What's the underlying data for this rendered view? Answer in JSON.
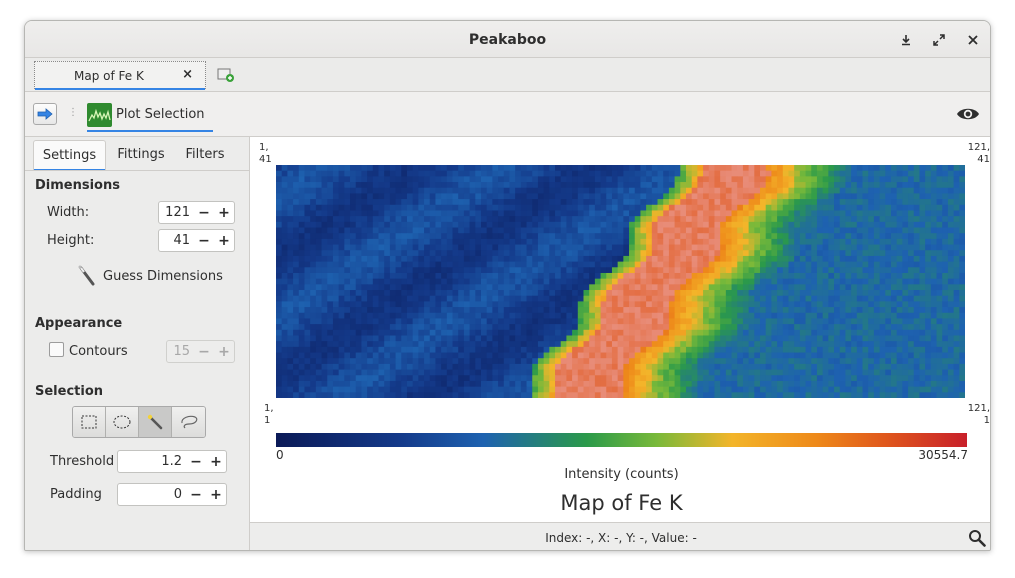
{
  "window": {
    "title": "Peakaboo"
  },
  "tabbar": {
    "tabs": [
      {
        "label": "Map of Fe K",
        "close": "×"
      }
    ]
  },
  "toolbar": {
    "plot_selection_label": "Plot Selection"
  },
  "sidebar": {
    "tabs": [
      "Settings",
      "Fittings",
      "Filters"
    ],
    "dimensions": {
      "heading": "Dimensions",
      "width_label": "Width:",
      "width_value": "121",
      "height_label": "Height:",
      "height_value": "41",
      "guess_label": "Guess Dimensions"
    },
    "appearance": {
      "heading": "Appearance",
      "contours_label": "Contours",
      "contours_checked": false,
      "contours_value": "15"
    },
    "selection": {
      "heading": "Selection",
      "tools": [
        "rectangle-select-icon",
        "ellipse-select-icon",
        "magic-wand-icon",
        "lasso-select-icon"
      ],
      "active_tool": 2,
      "threshold_label": "Threshold",
      "threshold_value": "1.2",
      "padding_label": "Padding",
      "padding_value": "0"
    },
    "spin_minus": "−",
    "spin_plus": "+"
  },
  "map": {
    "corner_tl": "1,\n41",
    "corner_tr": "121,\n41",
    "corner_bl": "1,\n1",
    "corner_br": "121,\n1",
    "colorbar_min": "0",
    "colorbar_max": "30554.7",
    "colorbar_label": "Intensity (counts)",
    "title": "Map of Fe K",
    "grid_cols": 121,
    "grid_rows": 41
  },
  "status": {
    "text": "Index: -, X: -, Y: -, Value: -"
  },
  "colors": {
    "accent": "#3584e4",
    "map_low": "#0b1a57",
    "map_high": "#c8202a"
  }
}
